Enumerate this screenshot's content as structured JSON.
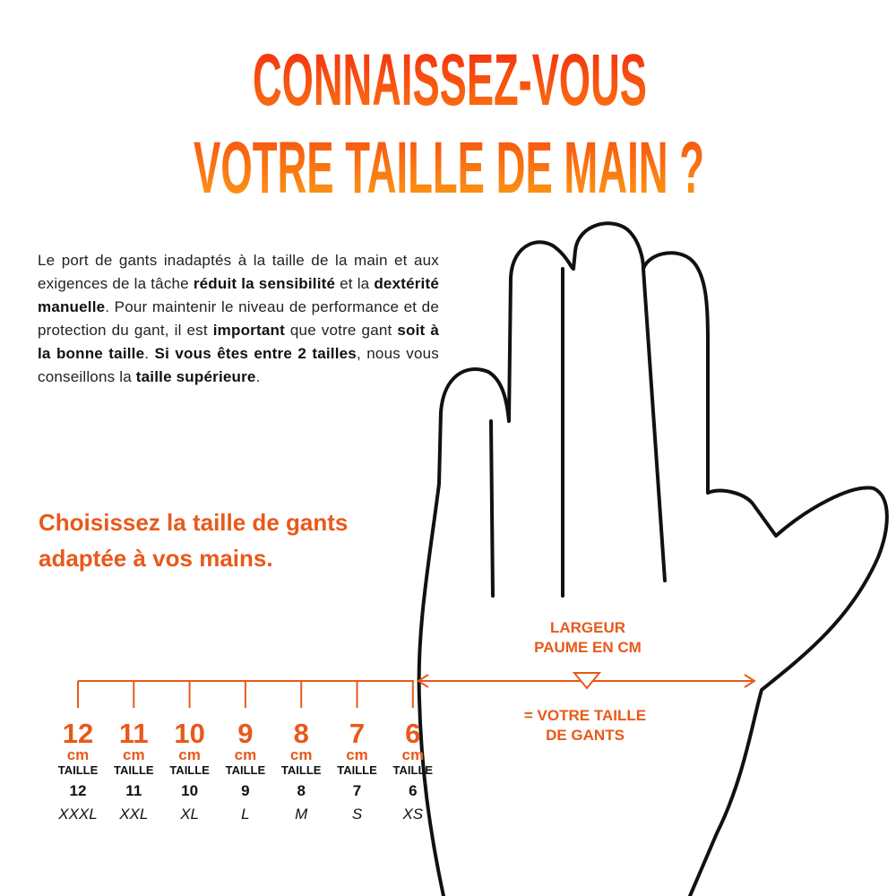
{
  "header": {
    "title_line1": "CONNAISSEZ-VOUS",
    "title_line2": "VOTRE TAILLE DE MAIN ?"
  },
  "paragraph": {
    "segments": [
      {
        "text": "Le port de gants inadaptés à la taille de la main et aux exigences de la tâche ",
        "bold": false
      },
      {
        "text": "réduit la sensibilité",
        "bold": true
      },
      {
        "text": " et la ",
        "bold": false
      },
      {
        "text": "dextérité manuelle",
        "bold": true
      },
      {
        "text": ". Pour maintenir le niveau de performance et de protection du gant, il est ",
        "bold": false
      },
      {
        "text": "important",
        "bold": true
      },
      {
        "text": " que votre gant ",
        "bold": false
      },
      {
        "text": "soit à la bonne taille",
        "bold": true
      },
      {
        "text": ". ",
        "bold": false
      },
      {
        "text": "Si vous êtes entre 2 tailles",
        "bold": true
      },
      {
        "text": ", nous vous conseillons la ",
        "bold": false
      },
      {
        "text": "taille supérieure",
        "bold": true
      },
      {
        "text": ".",
        "bold": false
      }
    ]
  },
  "subtitle": {
    "line1": "Choisissez la taille de gants",
    "line2": "adaptée à vos mains."
  },
  "measure": {
    "label_line1": "LARGEUR",
    "label_line2": "PAUME EN CM",
    "result_line1": "= VOTRE TAILLE",
    "result_line2": "DE GANTS"
  },
  "sizes": [
    {
      "cm": "12",
      "unit": "cm",
      "size_label": "TAILLE",
      "size": "12",
      "letter": "XXXL"
    },
    {
      "cm": "11",
      "unit": "cm",
      "size_label": "TAILLE",
      "size": "11",
      "letter": "XXL"
    },
    {
      "cm": "10",
      "unit": "cm",
      "size_label": "TAILLE",
      "size": "10",
      "letter": "XL"
    },
    {
      "cm": "9",
      "unit": "cm",
      "size_label": "TAILLE",
      "size": "9",
      "letter": "L"
    },
    {
      "cm": "8",
      "unit": "cm",
      "size_label": "TAILLE",
      "size": "8",
      "letter": "M"
    },
    {
      "cm": "7",
      "unit": "cm",
      "size_label": "TAILLE",
      "size": "7",
      "letter": "S"
    },
    {
      "cm": "6",
      "unit": "cm",
      "size_label": "TAILLE",
      "size": "6",
      "letter": "XS"
    }
  ]
}
